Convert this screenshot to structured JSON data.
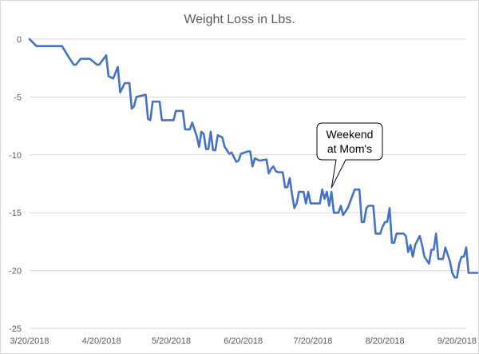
{
  "chart_data": {
    "type": "line",
    "title": "Weight Loss in Lbs.",
    "xlabel": "",
    "ylabel": "",
    "x_tick_labels": [
      "3/20/2018",
      "4/20/2018",
      "5/20/2018",
      "6/20/2018",
      "7/20/2018",
      "8/20/2018",
      "9/20/2018"
    ],
    "y_tick_labels": [
      "0",
      "-5",
      "-10",
      "-15",
      "-20",
      "-25"
    ],
    "xlim": [
      "2018-03-20",
      "2018-09-24"
    ],
    "ylim": [
      -25,
      0
    ],
    "grid": "horizontal",
    "legend": "none",
    "annotation": {
      "lines": [
        "Weekend",
        "at Mom's"
      ],
      "x": "2018-07-28",
      "y": -13
    },
    "series": [
      {
        "color": "#4472c4",
        "points": [
          [
            "2018-03-20",
            0.0
          ],
          [
            "2018-03-21",
            -0.2
          ],
          [
            "2018-03-23",
            -0.6
          ],
          [
            "2018-03-29",
            -0.6
          ],
          [
            "2018-04-03",
            -0.6
          ],
          [
            "2018-04-06",
            -1.6
          ],
          [
            "2018-04-08",
            -2.2
          ],
          [
            "2018-04-09",
            -2.2
          ],
          [
            "2018-04-11",
            -1.7
          ],
          [
            "2018-04-15",
            -1.7
          ],
          [
            "2018-04-18",
            -2.2
          ],
          [
            "2018-04-19",
            -2.2
          ],
          [
            "2018-04-22",
            -1.4
          ],
          [
            "2018-04-23",
            -3.2
          ],
          [
            "2018-04-25",
            -3.4
          ],
          [
            "2018-04-27",
            -2.4
          ],
          [
            "2018-04-28",
            -4.6
          ],
          [
            "2018-04-30",
            -3.8
          ],
          [
            "2018-05-02",
            -3.8
          ],
          [
            "2018-05-03",
            -6.0
          ],
          [
            "2018-05-04",
            -5.8
          ],
          [
            "2018-05-05",
            -5.0
          ],
          [
            "2018-05-09",
            -4.8
          ],
          [
            "2018-05-10",
            -6.9
          ],
          [
            "2018-05-11",
            -7.0
          ],
          [
            "2018-05-12",
            -5.4
          ],
          [
            "2018-05-15",
            -5.4
          ],
          [
            "2018-05-16",
            -7.0
          ],
          [
            "2018-05-21",
            -7.0
          ],
          [
            "2018-05-22",
            -6.2
          ],
          [
            "2018-05-25",
            -6.2
          ],
          [
            "2018-05-26",
            -7.8
          ],
          [
            "2018-05-28",
            -7.8
          ],
          [
            "2018-05-29",
            -7.2
          ],
          [
            "2018-05-31",
            -8.4
          ],
          [
            "2018-06-01",
            -9.3
          ],
          [
            "2018-06-02",
            -8.0
          ],
          [
            "2018-06-03",
            -8.2
          ],
          [
            "2018-06-04",
            -9.5
          ],
          [
            "2018-06-05",
            -9.5
          ],
          [
            "2018-06-06",
            -8.0
          ],
          [
            "2018-06-07",
            -9.6
          ],
          [
            "2018-06-08",
            -9.6
          ],
          [
            "2018-06-09",
            -8.3
          ],
          [
            "2018-06-11",
            -8.5
          ],
          [
            "2018-06-12",
            -9.3
          ],
          [
            "2018-06-14",
            -9.9
          ],
          [
            "2018-06-15",
            -9.8
          ],
          [
            "2018-06-17",
            -10.6
          ],
          [
            "2018-06-18",
            -10.5
          ],
          [
            "2018-06-19",
            -9.9
          ],
          [
            "2018-06-22",
            -9.7
          ],
          [
            "2018-06-23",
            -9.7
          ],
          [
            "2018-06-24",
            -11.0
          ],
          [
            "2018-06-25",
            -10.3
          ],
          [
            "2018-06-27",
            -10.5
          ],
          [
            "2018-06-30",
            -10.4
          ],
          [
            "2018-07-01",
            -11.6
          ],
          [
            "2018-07-02",
            -11.2
          ],
          [
            "2018-07-03",
            -11.0
          ],
          [
            "2018-07-04",
            -11.4
          ],
          [
            "2018-07-05",
            -11.5
          ],
          [
            "2018-07-07",
            -11.5
          ],
          [
            "2018-07-08",
            -12.8
          ],
          [
            "2018-07-09",
            -12.8
          ],
          [
            "2018-07-10",
            -12.0
          ],
          [
            "2018-07-11",
            -13.4
          ],
          [
            "2018-07-12",
            -14.6
          ],
          [
            "2018-07-13",
            -14.2
          ],
          [
            "2018-07-14",
            -13.2
          ],
          [
            "2018-07-16",
            -13.2
          ],
          [
            "2018-07-17",
            -14.2
          ],
          [
            "2018-07-18",
            -13.2
          ],
          [
            "2018-07-19",
            -14.2
          ],
          [
            "2018-07-20",
            -14.2
          ],
          [
            "2018-07-23",
            -14.2
          ],
          [
            "2018-07-24",
            -13.0
          ],
          [
            "2018-07-25",
            -13.8
          ],
          [
            "2018-07-26",
            -13.2
          ],
          [
            "2018-07-27",
            -14.4
          ],
          [
            "2018-07-28",
            -13.2
          ],
          [
            "2018-07-29",
            -15.0
          ],
          [
            "2018-07-30",
            -15.0
          ],
          [
            "2018-07-31",
            -15.0
          ],
          [
            "2018-08-01",
            -14.4
          ],
          [
            "2018-08-02",
            -15.2
          ],
          [
            "2018-08-04",
            -14.6
          ],
          [
            "2018-08-07",
            -13.0
          ],
          [
            "2018-08-09",
            -13.0
          ],
          [
            "2018-08-10",
            -15.8
          ],
          [
            "2018-08-11",
            -15.8
          ],
          [
            "2018-08-12",
            -14.6
          ],
          [
            "2018-08-13",
            -14.4
          ],
          [
            "2018-08-15",
            -14.4
          ],
          [
            "2018-08-16",
            -16.8
          ],
          [
            "2018-08-18",
            -16.8
          ],
          [
            "2018-08-19",
            -16.2
          ],
          [
            "2018-08-20",
            -15.8
          ],
          [
            "2018-08-21",
            -15.8
          ],
          [
            "2018-08-22",
            -14.6
          ],
          [
            "2018-08-23",
            -17.6
          ],
          [
            "2018-08-24",
            -17.6
          ],
          [
            "2018-08-25",
            -16.8
          ],
          [
            "2018-08-28",
            -16.8
          ],
          [
            "2018-08-29",
            -17.0
          ],
          [
            "2018-08-30",
            -18.4
          ],
          [
            "2018-08-31",
            -17.8
          ],
          [
            "2018-09-01",
            -18.8
          ],
          [
            "2018-09-02",
            -17.8
          ],
          [
            "2018-09-04",
            -17.0
          ],
          [
            "2018-09-05",
            -17.8
          ],
          [
            "2018-09-06",
            -18.8
          ],
          [
            "2018-09-08",
            -19.4
          ],
          [
            "2018-09-09",
            -18.2
          ],
          [
            "2018-09-10",
            -18.2
          ],
          [
            "2018-09-11",
            -16.8
          ],
          [
            "2018-09-12",
            -19.0
          ],
          [
            "2018-09-14",
            -19.0
          ],
          [
            "2018-09-15",
            -18.0
          ],
          [
            "2018-09-17",
            -19.2
          ],
          [
            "2018-09-18",
            -20.2
          ],
          [
            "2018-09-19",
            -20.6
          ],
          [
            "2018-09-20",
            -20.6
          ],
          [
            "2018-09-21",
            -19.4
          ],
          [
            "2018-09-22",
            -18.8
          ],
          [
            "2018-09-23",
            -18.8
          ],
          [
            "2018-09-24",
            -18.0
          ],
          [
            "2018-09-25",
            -20.2
          ],
          [
            "2018-09-30",
            -20.2
          ]
        ]
      }
    ]
  }
}
